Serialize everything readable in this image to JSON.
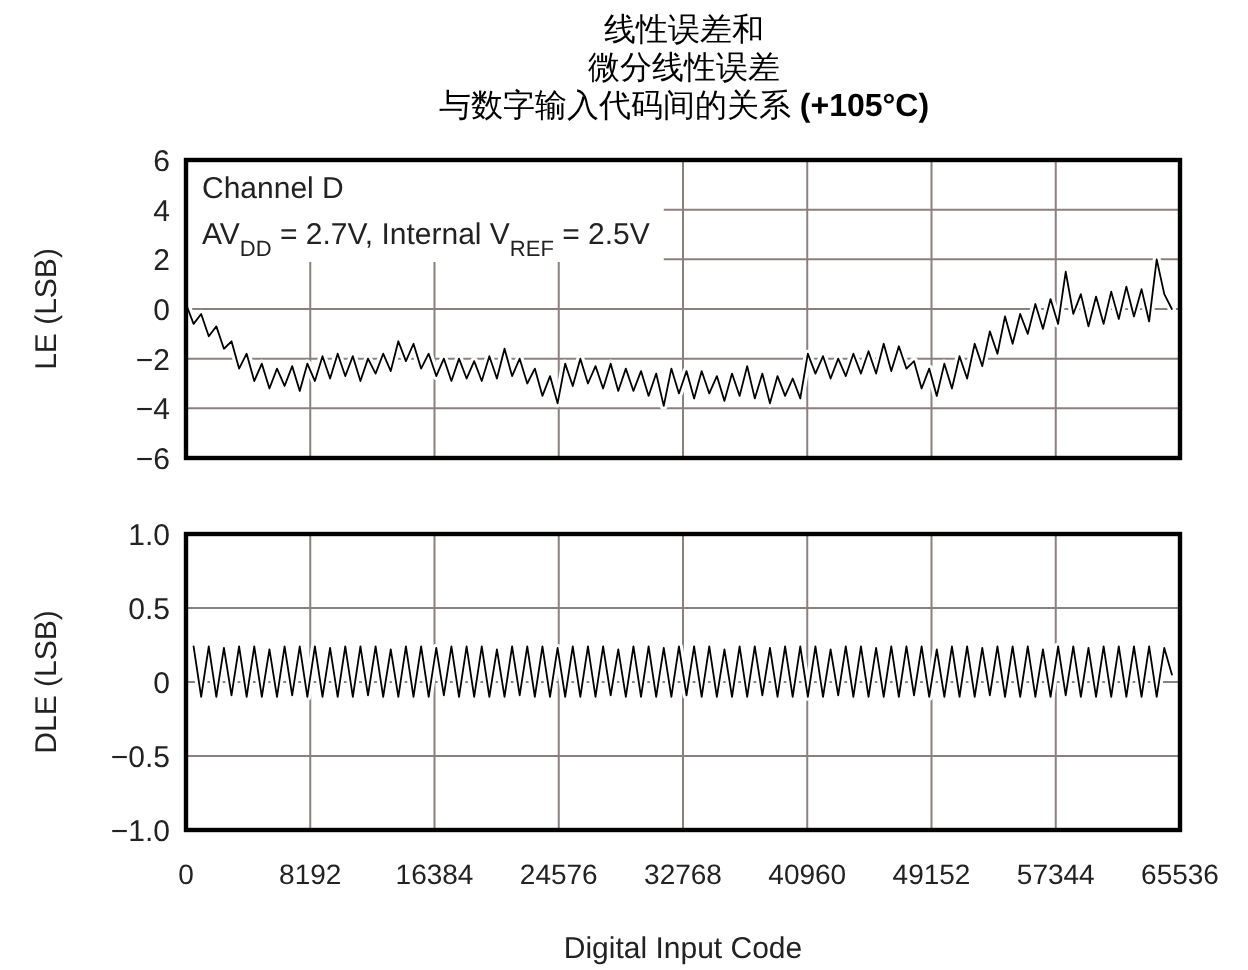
{
  "chart_data": [
    {
      "type": "line",
      "title": "线性误差和微分线性误差",
      "subtitle": "与数字输入代码间的关系 **(+105°C)**",
      "ylabel": "LE (LSB)",
      "annotations": [
        "Channel D",
        "AV$_{DD}$ = 2.7V, Internal V$_{REF}$ = 2.5V"
      ],
      "xlim": [
        0,
        65536
      ],
      "xticks": [
        0,
        8192,
        16384,
        24576,
        32768,
        40960,
        49152,
        57344,
        65536
      ],
      "ylim": [
        -6,
        6
      ],
      "yticks": [
        {
          "value": -6,
          "label": "−6"
        },
        {
          "value": -4,
          "label": "−4"
        },
        {
          "value": -2,
          "label": "−2"
        },
        0,
        2,
        4,
        6
      ],
      "grid": true,
      "tick_labels": "y",
      "series": [
        {
          "color": "#000000",
          "x": [
            0,
            500,
            1000,
            1500,
            2000,
            2500,
            3000,
            3500,
            4000,
            4500,
            5000,
            5500,
            6000,
            6500,
            7000,
            7500,
            8000,
            8500,
            9000,
            9500,
            10000,
            10500,
            11000,
            11500,
            12000,
            12500,
            13000,
            13500,
            14000,
            14500,
            15000,
            15500,
            16000,
            16500,
            17000,
            17500,
            18000,
            18500,
            19000,
            19500,
            20000,
            20500,
            21000,
            21500,
            22000,
            22500,
            23000,
            23500,
            24000,
            24500,
            25000,
            25500,
            26000,
            26500,
            27000,
            27500,
            28000,
            28500,
            29000,
            29500,
            30000,
            30500,
            31000,
            31500,
            32000,
            32500,
            33000,
            33500,
            34000,
            34500,
            35000,
            35500,
            36000,
            36500,
            37000,
            37500,
            38000,
            38500,
            39000,
            39500,
            40000,
            40500,
            41000,
            41500,
            42000,
            42500,
            43000,
            43500,
            44000,
            44500,
            45000,
            45500,
            46000,
            46500,
            47000,
            47500,
            48000,
            48500,
            49000,
            49500,
            50000,
            50500,
            51000,
            51500,
            52000,
            52500,
            53000,
            53500,
            54000,
            54500,
            55000,
            55500,
            56000,
            56500,
            57000,
            57500,
            58000,
            58500,
            59000,
            59500,
            60000,
            60500,
            61000,
            61500,
            62000,
            62500,
            63000,
            63500,
            64000,
            64500,
            65000
          ],
          "values": [
            0.2,
            -0.6,
            -0.2,
            -1.1,
            -0.7,
            -1.6,
            -1.3,
            -2.4,
            -1.8,
            -2.9,
            -2.2,
            -3.2,
            -2.4,
            -3.1,
            -2.3,
            -3.3,
            -2.2,
            -2.9,
            -1.9,
            -2.8,
            -1.8,
            -2.7,
            -1.9,
            -2.9,
            -2.0,
            -2.6,
            -1.8,
            -2.5,
            -1.3,
            -2.1,
            -1.4,
            -2.4,
            -1.8,
            -2.7,
            -2.0,
            -2.9,
            -2.0,
            -2.8,
            -2.1,
            -2.9,
            -1.9,
            -2.8,
            -1.6,
            -2.7,
            -2.0,
            -3.0,
            -2.4,
            -3.5,
            -2.7,
            -3.8,
            -2.2,
            -3.1,
            -2.0,
            -3.0,
            -2.3,
            -3.2,
            -2.2,
            -3.3,
            -2.4,
            -3.3,
            -2.5,
            -3.5,
            -2.6,
            -3.9,
            -2.4,
            -3.4,
            -2.5,
            -3.6,
            -2.5,
            -3.4,
            -2.7,
            -3.7,
            -2.6,
            -3.5,
            -2.3,
            -3.6,
            -2.6,
            -3.8,
            -2.7,
            -3.5,
            -2.8,
            -3.6,
            -1.8,
            -2.6,
            -1.9,
            -2.8,
            -2.0,
            -2.7,
            -1.8,
            -2.6,
            -1.7,
            -2.6,
            -1.4,
            -2.5,
            -1.5,
            -2.4,
            -2.1,
            -3.2,
            -2.4,
            -3.5,
            -2.2,
            -3.2,
            -1.9,
            -2.8,
            -1.4,
            -2.3,
            -0.9,
            -1.8,
            -0.3,
            -1.4,
            -0.2,
            -1.0,
            0.2,
            -0.8,
            0.4,
            -0.6,
            1.5,
            -0.2,
            0.6,
            -0.7,
            0.5,
            -0.6,
            0.7,
            -0.4,
            0.9,
            -0.3,
            0.8,
            -0.5,
            2.0,
            0.6,
            0.0
          ]
        }
      ]
    },
    {
      "type": "line",
      "ylabel": "DLE (LSB)",
      "xlabel": "Digital Input Code",
      "xlim": [
        0,
        65536
      ],
      "xticks": [
        0,
        8192,
        16384,
        24576,
        32768,
        40960,
        49152,
        57344,
        65536
      ],
      "ylim": [
        -1,
        1
      ],
      "yticks": [
        {
          "value": -1,
          "label": "−1.0"
        },
        {
          "value": -0.5,
          "label": "−0.5"
        },
        0,
        0.5,
        {
          "value": 1,
          "label": "1.0"
        }
      ],
      "grid": true,
      "series": [
        {
          "color": "#000000",
          "x": [
            500,
            1000,
            1500,
            2000,
            2500,
            3000,
            3500,
            4000,
            4500,
            5000,
            5500,
            6000,
            6500,
            7000,
            7500,
            8000,
            8500,
            9000,
            9500,
            10000,
            10500,
            11000,
            11500,
            12000,
            12500,
            13000,
            13500,
            14000,
            14500,
            15000,
            15500,
            16000,
            16500,
            17000,
            17500,
            18000,
            18500,
            19000,
            19500,
            20000,
            20500,
            21000,
            21500,
            22000,
            22500,
            23000,
            23500,
            24000,
            24500,
            25000,
            25500,
            26000,
            26500,
            27000,
            27500,
            28000,
            28500,
            29000,
            29500,
            30000,
            30500,
            31000,
            31500,
            32000,
            32500,
            33000,
            33500,
            34000,
            34500,
            35000,
            35500,
            36000,
            36500,
            37000,
            37500,
            38000,
            38500,
            39000,
            39500,
            40000,
            40500,
            41000,
            41500,
            42000,
            42500,
            43000,
            43500,
            44000,
            44500,
            45000,
            45500,
            46000,
            46500,
            47000,
            47500,
            48000,
            48500,
            49000,
            49500,
            50000,
            50500,
            51000,
            51500,
            52000,
            52500,
            53000,
            53500,
            54000,
            54500,
            55000,
            55500,
            56000,
            56500,
            57000,
            57500,
            58000,
            58500,
            59000,
            59500,
            60000,
            60500,
            61000,
            61500,
            62000,
            62500,
            63000,
            63500,
            64000,
            64500,
            65000
          ],
          "values": [
            0.24,
            -0.1,
            0.24,
            -0.1,
            0.23,
            -0.09,
            0.24,
            -0.1,
            0.24,
            -0.1,
            0.22,
            -0.1,
            0.24,
            -0.09,
            0.24,
            -0.1,
            0.24,
            -0.1,
            0.23,
            -0.1,
            0.24,
            -0.1,
            0.24,
            -0.09,
            0.24,
            -0.1,
            0.22,
            -0.1,
            0.24,
            -0.1,
            0.24,
            -0.1,
            0.23,
            -0.09,
            0.24,
            -0.1,
            0.24,
            -0.1,
            0.24,
            -0.1,
            0.22,
            -0.1,
            0.24,
            -0.09,
            0.24,
            -0.1,
            0.24,
            -0.1,
            0.23,
            -0.1,
            0.24,
            -0.1,
            0.24,
            -0.1,
            0.24,
            -0.09,
            0.22,
            -0.1,
            0.24,
            -0.1,
            0.24,
            -0.1,
            0.23,
            -0.1,
            0.24,
            -0.09,
            0.24,
            -0.1,
            0.24,
            -0.1,
            0.22,
            -0.1,
            0.24,
            -0.1,
            0.24,
            -0.09,
            0.23,
            -0.1,
            0.24,
            -0.1,
            0.24,
            -0.1,
            0.24,
            -0.1,
            0.22,
            -0.09,
            0.24,
            -0.1,
            0.24,
            -0.1,
            0.23,
            -0.1,
            0.24,
            -0.1,
            0.24,
            -0.09,
            0.24,
            -0.1,
            0.22,
            -0.1,
            0.24,
            -0.1,
            0.24,
            -0.1,
            0.23,
            -0.09,
            0.24,
            -0.1,
            0.24,
            -0.1,
            0.24,
            -0.1,
            0.22,
            -0.1,
            0.24,
            -0.09,
            0.24,
            -0.1,
            0.23,
            -0.1,
            0.24,
            -0.1,
            0.24,
            -0.1,
            0.24,
            -0.1,
            0.24,
            -0.1,
            0.23,
            0.05
          ]
        }
      ]
    }
  ]
}
